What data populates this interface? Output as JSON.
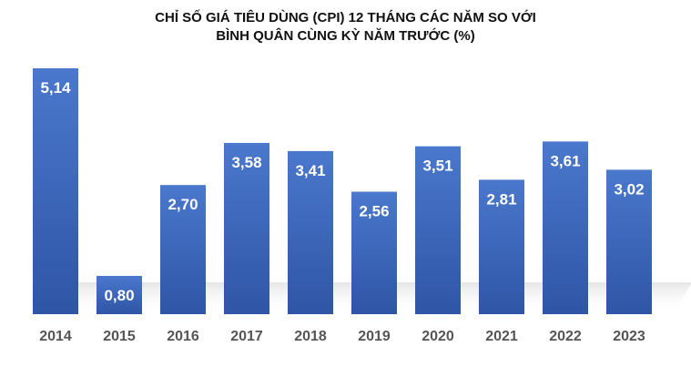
{
  "chart_data": {
    "type": "bar",
    "title_line1": "CHỈ SỐ GIÁ TIÊU DÙNG (CPI) 12 THÁNG CÁC NĂM SO VỚI",
    "title_line2": "BÌNH QUÂN CÙNG KỲ NĂM TRƯỚC (%)",
    "categories": [
      "2014",
      "2015",
      "2016",
      "2017",
      "2018",
      "2019",
      "2020",
      "2021",
      "2022",
      "2023"
    ],
    "values": [
      5.14,
      0.8,
      2.7,
      3.58,
      3.41,
      2.56,
      3.51,
      2.81,
      3.61,
      3.02
    ],
    "value_labels": [
      "5,14",
      "0,80",
      "2,70",
      "3,58",
      "3,41",
      "2,56",
      "3,51",
      "2,81",
      "3,61",
      "3,02"
    ],
    "xlabel": "",
    "ylabel": "",
    "ylim": [
      0,
      5.14
    ],
    "grid": false,
    "legend": "none",
    "colors": {
      "bar_top": "#4a78cc",
      "bar_bottom": "#2f55a6",
      "value_label": "#ffffff",
      "tick_label": "#555555",
      "floor_shadow": "#d9d9d9"
    }
  }
}
